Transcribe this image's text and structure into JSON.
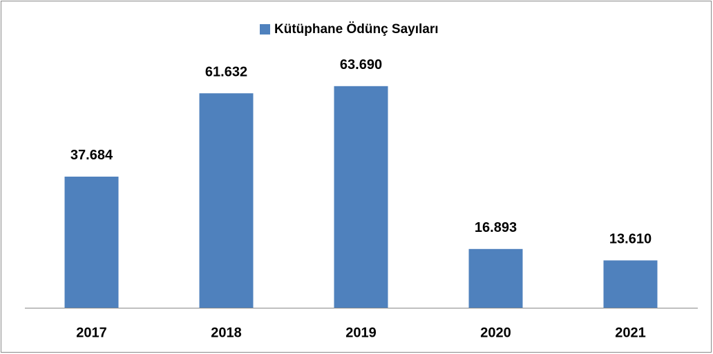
{
  "chart_data": {
    "type": "bar",
    "categories": [
      "2017",
      "2018",
      "2019",
      "2020",
      "2021"
    ],
    "series": [
      {
        "name": "Kütüphane Ödünç Sayıları",
        "color": "#4f81bd",
        "values": [
          37684,
          61632,
          63690,
          16893,
          13610
        ],
        "value_labels": [
          "37.684",
          "61.632",
          "63.690",
          "16.893",
          "13.610"
        ]
      }
    ],
    "ylim": [
      0,
      70000
    ],
    "legend": "top"
  }
}
